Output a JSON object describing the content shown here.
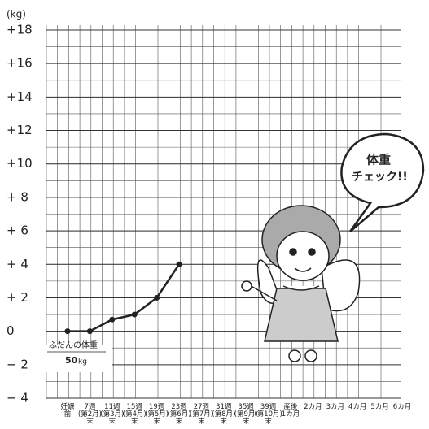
{
  "chart_data": {
    "type": "line",
    "y_unit": "(kg)",
    "categories": [
      [
        "妊娠",
        "前"
      ],
      [
        "7週",
        "(第2月)",
        "末"
      ],
      [
        "11週",
        "(第3月)",
        "末"
      ],
      [
        "15週",
        "(第4月)",
        "末"
      ],
      [
        "19週",
        "(第5月)",
        "末"
      ],
      [
        "23週",
        "(第6月)",
        "末"
      ],
      [
        "27週",
        "(第7月)",
        "末"
      ],
      [
        "31週",
        "(第8月)",
        "末"
      ],
      [
        "35週",
        "(第9月)",
        "末"
      ],
      [
        "39週",
        "(第10月)",
        "末"
      ],
      [
        "産後",
        "1カ月"
      ],
      [
        "2カ月"
      ],
      [
        "3カ月"
      ],
      [
        "4カ月"
      ],
      [
        "5カ月"
      ],
      [
        "6カ月"
      ]
    ],
    "values": [
      0,
      0,
      0.7,
      1,
      2,
      4,
      null,
      null,
      null,
      null,
      null,
      null,
      null,
      null,
      null,
      null
    ],
    "color": "#222222",
    "ylim": [
      -4,
      18
    ],
    "yticks": [
      {
        "value": 18,
        "label": "+18"
      },
      {
        "value": 16,
        "label": "+16"
      },
      {
        "value": 14,
        "label": "+14"
      },
      {
        "value": 12,
        "label": "+12"
      },
      {
        "value": 10,
        "label": "+10"
      },
      {
        "value": 8,
        "label": "+ 8"
      },
      {
        "value": 6,
        "label": "+ 6"
      },
      {
        "value": 4,
        "label": "+ 4"
      },
      {
        "value": 2,
        "label": "+ 2"
      },
      0,
      {
        "value": -2,
        "label": "− 2"
      },
      {
        "value": -4,
        "label": "− 4"
      }
    ],
    "grid": true,
    "baseline_note": {
      "text": "ふだんの体重",
      "value": "50",
      "unit": "kg"
    },
    "bubble": [
      "体重",
      "チェック!!"
    ]
  }
}
